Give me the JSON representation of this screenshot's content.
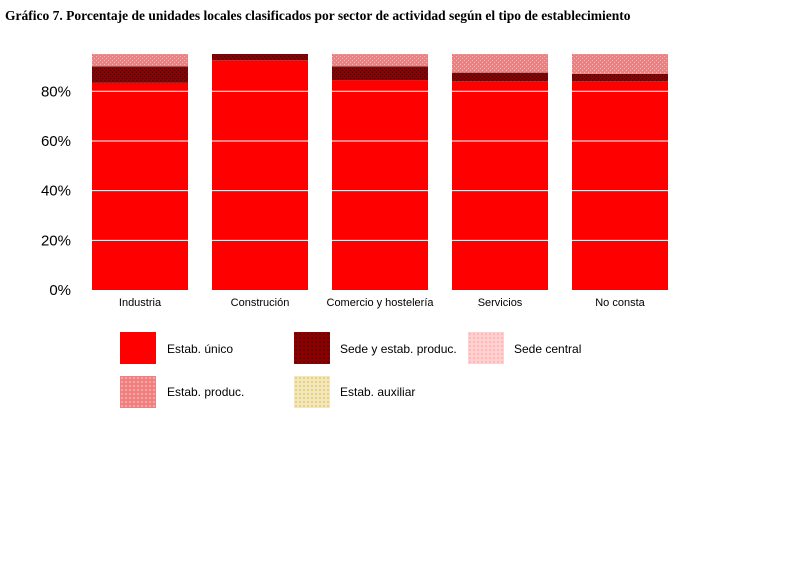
{
  "chart_data": {
    "type": "bar",
    "stacked": true,
    "title": "Gráfico 7. Porcentaje de unidades locales clasificados por sector de actividad según el tipo de establecimiento",
    "categories": [
      "Industria",
      "Construción",
      "Comercio y hostelería",
      "Servicios",
      "No consta"
    ],
    "series": [
      {
        "name": "Estab. único",
        "color": "#ff0000",
        "values": [
          83.5,
          92.5,
          84.5,
          84.0,
          84.0
        ]
      },
      {
        "name": "Sede y estab. produc.",
        "color": "#8b0000",
        "values": [
          6.5,
          2.5,
          5.5,
          3.5,
          3.0
        ]
      },
      {
        "name": "Sede central",
        "color": "#ffc0c0",
        "values": [
          0,
          0,
          0,
          0,
          0
        ]
      },
      {
        "name": "Estab. produc.",
        "color": "#f08080",
        "values": [
          5.0,
          0,
          5.0,
          7.5,
          8.0
        ]
      },
      {
        "name": "Estab. auxiliar",
        "color": "#f0e0a0",
        "values": [
          0,
          0,
          0,
          0,
          0
        ]
      }
    ],
    "y_ticks": [
      "0%",
      "20%",
      "40%",
      "60%",
      "80%"
    ],
    "y_tick_values": [
      0,
      20,
      40,
      60,
      80
    ],
    "ylim": [
      0,
      100
    ],
    "grid": true,
    "grid_color": "#ffffff",
    "legend_position": "bottom"
  }
}
